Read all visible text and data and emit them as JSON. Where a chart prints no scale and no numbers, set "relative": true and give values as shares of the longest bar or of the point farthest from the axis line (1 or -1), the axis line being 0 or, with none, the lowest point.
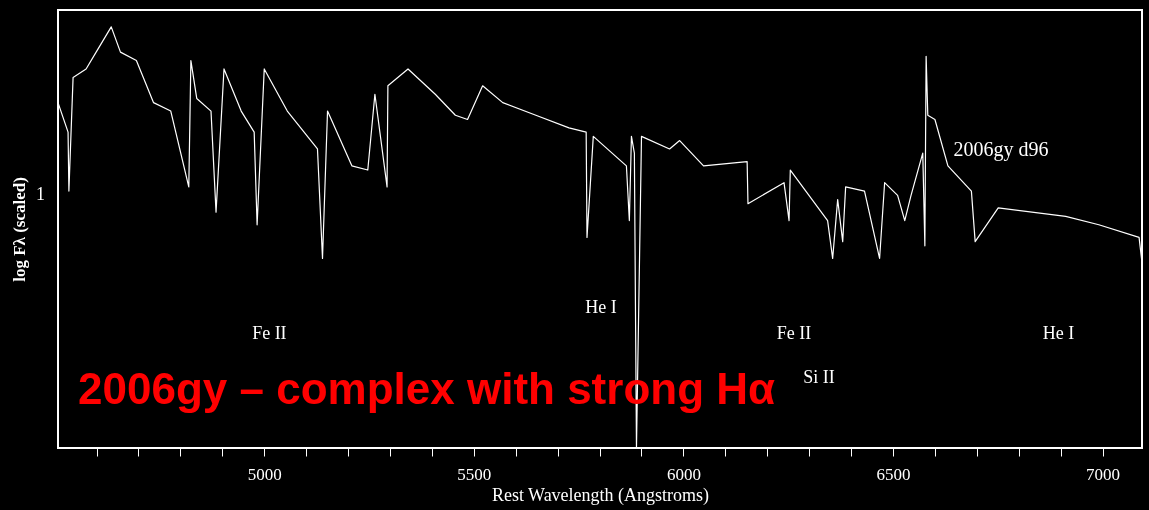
{
  "chart_data": {
    "type": "line",
    "relative": true,
    "xlabel": "Rest Wavelength (Angstroms)",
    "ylabel": "log Fλ (scaled)",
    "xlim": [
      4508,
      7094
    ],
    "xticks": [
      {
        "value": 4600,
        "label": null
      },
      {
        "value": 4700,
        "label": null
      },
      {
        "value": 4800,
        "label": null
      },
      {
        "value": 4900,
        "label": null
      },
      5000,
      {
        "value": 5100,
        "label": null
      },
      {
        "value": 5200,
        "label": null
      },
      {
        "value": 5300,
        "label": null
      },
      {
        "value": 5400,
        "label": null
      },
      5500,
      {
        "value": 5600,
        "label": null
      },
      {
        "value": 5700,
        "label": null
      },
      {
        "value": 5800,
        "label": null
      },
      {
        "value": 5900,
        "label": null
      },
      6000,
      {
        "value": 6100,
        "label": null
      },
      {
        "value": 6200,
        "label": null
      },
      {
        "value": 6300,
        "label": null
      },
      {
        "value": 6400,
        "label": null
      },
      6500,
      {
        "value": 6600,
        "label": null
      },
      {
        "value": 6700,
        "label": null
      },
      {
        "value": 6800,
        "label": null
      },
      {
        "value": 6900,
        "label": null
      },
      7000
    ],
    "grid": false,
    "marker": "none",
    "line_style": "solid",
    "x": [
      4508,
      4532,
      4534,
      4544,
      4575,
      4599,
      4635,
      4657,
      4695,
      4736,
      4777,
      4820,
      4825,
      4839,
      4873,
      4885,
      4904,
      4945,
      4976,
      4983,
      5000,
      5055,
      5127,
      5139,
      5151,
      5209,
      5247,
      5264,
      5293,
      5295,
      5343,
      5408,
      5456,
      5485,
      5521,
      5569,
      5648,
      5727,
      5768,
      5770,
      5785,
      5864,
      5871,
      5876,
      5883,
      5888,
      5900,
      5967,
      5991,
      6048,
      6152,
      6154,
      6240,
      6252,
      6255,
      6344,
      6356,
      6368,
      6380,
      6387,
      6432,
      6468,
      6480,
      6511,
      6528,
      6543,
      6571,
      6576,
      6579,
      6583,
      6600,
      6631,
      6687,
      6696,
      6751,
      6912,
      6991,
      7087,
      7094
    ],
    "series": [
      {
        "color": "#ffffff",
        "values": [
          0.82,
          0.75,
          0.61,
          0.88,
          0.9,
          0.94,
          1.0,
          0.94,
          0.92,
          0.82,
          0.8,
          0.62,
          0.92,
          0.83,
          0.8,
          0.56,
          0.9,
          0.8,
          0.75,
          0.53,
          0.9,
          0.8,
          0.71,
          0.45,
          0.8,
          0.67,
          0.66,
          0.84,
          0.62,
          0.86,
          0.9,
          0.84,
          0.79,
          0.78,
          0.86,
          0.82,
          0.79,
          0.76,
          0.75,
          0.5,
          0.74,
          0.67,
          0.54,
          0.74,
          0.7,
          0.0,
          0.74,
          0.71,
          0.73,
          0.67,
          0.68,
          0.58,
          0.63,
          0.54,
          0.66,
          0.54,
          0.45,
          0.59,
          0.49,
          0.62,
          0.61,
          0.45,
          0.63,
          0.6,
          0.54,
          0.6,
          0.7,
          0.48,
          0.93,
          0.79,
          0.78,
          0.67,
          0.61,
          0.49,
          0.57,
          0.55,
          0.53,
          0.5,
          0.44
        ]
      }
    ],
    "annotations": [
      "1",
      "2006gy d96",
      "2006gy – complex with strong Hα",
      "Fe II",
      "He I",
      "Fe II",
      "Si II",
      "He I"
    ]
  }
}
